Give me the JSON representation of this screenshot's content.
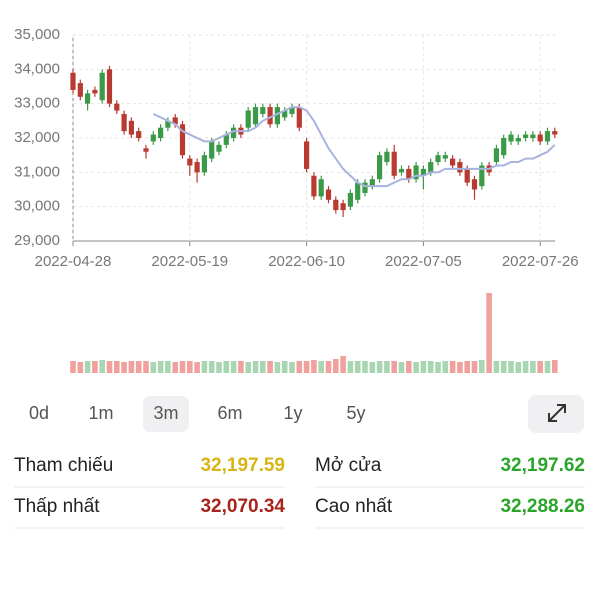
{
  "chart_data": [
    {
      "type": "candlestick",
      "categories": [
        "2022-04-28",
        null,
        null,
        null,
        null,
        null,
        null,
        null,
        null,
        null,
        null,
        null,
        null,
        null,
        null,
        null,
        "2022-05-19",
        null,
        null,
        null,
        null,
        null,
        null,
        null,
        null,
        null,
        null,
        null,
        null,
        null,
        null,
        null,
        "2022-06-10",
        null,
        null,
        null,
        null,
        null,
        null,
        null,
        null,
        null,
        null,
        null,
        null,
        null,
        null,
        null,
        "2022-07-05",
        null,
        null,
        null,
        null,
        null,
        null,
        null,
        null,
        null,
        null,
        null,
        null,
        null,
        null,
        null,
        "2022-07-26",
        null,
        null
      ],
      "candles": [
        [
          33900,
          34000,
          33300,
          33400
        ],
        [
          33600,
          33700,
          33100,
          33200
        ],
        [
          33000,
          33400,
          32800,
          33300
        ],
        [
          33400,
          33500,
          33200,
          33300
        ],
        [
          33100,
          34000,
          33000,
          33900
        ],
        [
          34000,
          34100,
          32900,
          33000
        ],
        [
          33000,
          33100,
          32700,
          32800
        ],
        [
          32700,
          32800,
          32100,
          32200
        ],
        [
          32500,
          32600,
          32000,
          32100
        ],
        [
          32200,
          32300,
          31900,
          32000
        ],
        [
          31700,
          31800,
          31400,
          31600
        ],
        [
          31900,
          32200,
          31800,
          32100
        ],
        [
          32000,
          32400,
          31900,
          32300
        ],
        [
          32300,
          32600,
          32200,
          32500
        ],
        [
          32600,
          32700,
          32300,
          32400
        ],
        [
          32400,
          32500,
          31400,
          31500
        ],
        [
          31400,
          31500,
          30900,
          31200
        ],
        [
          31300,
          31400,
          30700,
          31000
        ],
        [
          31000,
          31600,
          30900,
          31500
        ],
        [
          31400,
          32000,
          31300,
          31900
        ],
        [
          31600,
          31900,
          31500,
          31800
        ],
        [
          31800,
          32200,
          31700,
          32100
        ],
        [
          32000,
          32400,
          31900,
          32300
        ],
        [
          32300,
          32400,
          32000,
          32100
        ],
        [
          32300,
          32900,
          32200,
          32800
        ],
        [
          32400,
          33000,
          32300,
          32900
        ],
        [
          32700,
          33000,
          32600,
          32900
        ],
        [
          32900,
          33000,
          32300,
          32400
        ],
        [
          32400,
          33000,
          32300,
          32900
        ],
        [
          32600,
          32900,
          32500,
          32800
        ],
        [
          32700,
          33000,
          32600,
          32900
        ],
        [
          32900,
          33000,
          32200,
          32300
        ],
        [
          31900,
          32000,
          31000,
          31100
        ],
        [
          30900,
          31000,
          30200,
          30300
        ],
        [
          30300,
          30900,
          30200,
          30800
        ],
        [
          30500,
          30600,
          30100,
          30200
        ],
        [
          30200,
          30300,
          29800,
          29900
        ],
        [
          30100,
          30200,
          29700,
          29900
        ],
        [
          30000,
          30500,
          29900,
          30400
        ],
        [
          30200,
          30800,
          30100,
          30700
        ],
        [
          30400,
          30800,
          30300,
          30700
        ],
        [
          30600,
          30900,
          30500,
          30800
        ],
        [
          30800,
          31600,
          30700,
          31500
        ],
        [
          31300,
          31700,
          31200,
          31600
        ],
        [
          31600,
          31800,
          30800,
          30900
        ],
        [
          31000,
          31200,
          30900,
          31100
        ],
        [
          31100,
          31200,
          30700,
          30800
        ],
        [
          30800,
          31300,
          30700,
          31200
        ],
        [
          30900,
          31200,
          30500,
          31100
        ],
        [
          31000,
          31400,
          30900,
          31300
        ],
        [
          31300,
          31600,
          31200,
          31500
        ],
        [
          31400,
          31600,
          31300,
          31500
        ],
        [
          31400,
          31500,
          31100,
          31200
        ],
        [
          31300,
          31400,
          30900,
          31000
        ],
        [
          31100,
          31200,
          30600,
          30700
        ],
        [
          30800,
          30900,
          30200,
          30500
        ],
        [
          30600,
          31300,
          30500,
          31200
        ],
        [
          31200,
          31300,
          30900,
          31000
        ],
        [
          31300,
          31800,
          31200,
          31700
        ],
        [
          31500,
          32100,
          31400,
          32000
        ],
        [
          31900,
          32200,
          31800,
          32100
        ],
        [
          31900,
          32100,
          31800,
          32000
        ],
        [
          32000,
          32200,
          31900,
          32100
        ],
        [
          32000,
          32200,
          31900,
          32100
        ],
        [
          32100,
          32200,
          31800,
          31900
        ],
        [
          31900,
          32300,
          31800,
          32200
        ],
        [
          32200,
          32300,
          32000,
          32100
        ]
      ],
      "line": {
        "color": "#a9b3e0",
        "values": [
          null,
          null,
          null,
          null,
          null,
          null,
          null,
          null,
          null,
          null,
          null,
          32700,
          32600,
          32500,
          32400,
          32200,
          32100,
          32000,
          31900,
          31900,
          32000,
          32100,
          32200,
          32200,
          32200,
          32300,
          32500,
          32600,
          32700,
          32800,
          32900,
          32900,
          32800,
          32500,
          32100,
          31700,
          31400,
          31100,
          30900,
          30700,
          30600,
          30600,
          30600,
          30600,
          30700,
          30800,
          30800,
          30900,
          30900,
          31000,
          31000,
          31100,
          31100,
          31100,
          31100,
          31100,
          31100,
          31100,
          31200,
          31200,
          31300,
          31300,
          31400,
          31400,
          31500,
          31600,
          31800
        ]
      },
      "up_color": "#3a9a48",
      "down_color": "#b83a30",
      "ylim": [
        29000,
        35000
      ],
      "yticks": [
        {
          "value": 29000,
          "label": "29,000"
        },
        {
          "value": 30000,
          "label": "30,000"
        },
        {
          "value": 31000,
          "label": "31,000"
        },
        {
          "value": 32000,
          "label": "32,000"
        },
        {
          "value": 33000,
          "label": "33,000"
        },
        {
          "value": 34000,
          "label": "34,000"
        },
        {
          "value": 35000,
          "label": "35,000"
        }
      ],
      "grid": true
    },
    {
      "type": "bar",
      "values": [
        12,
        11,
        12,
        12,
        13,
        12,
        12,
        11,
        12,
        12,
        12,
        11,
        12,
        12,
        11,
        12,
        12,
        11,
        12,
        12,
        11,
        12,
        12,
        12,
        11,
        12,
        12,
        12,
        11,
        12,
        11,
        12,
        12,
        13,
        12,
        12,
        14,
        17,
        12,
        12,
        12,
        11,
        12,
        12,
        12,
        11,
        12,
        11,
        12,
        12,
        11,
        12,
        12,
        11,
        12,
        12,
        13,
        80,
        12,
        12,
        12,
        11,
        12,
        12,
        12,
        12,
        13
      ],
      "up_color": "#a9d6b2",
      "down_color": "#f0a19d",
      "ylim": [
        0,
        80
      ]
    }
  ],
  "periods": {
    "items": [
      "0d",
      "1m",
      "3m",
      "6m",
      "1y",
      "5y"
    ],
    "selected": 2
  },
  "stats": [
    {
      "label": "Tham chiếu",
      "value": "32,197.59",
      "color": "#d9b415"
    },
    {
      "label": "Mở cửa",
      "value": "32,197.62",
      "color": "#2aa52a"
    },
    {
      "label": "Thấp nhất",
      "value": "32,070.34",
      "color": "#a8231b"
    },
    {
      "label": "Cao nhất",
      "value": "32,288.26",
      "color": "#2aa52a"
    }
  ]
}
